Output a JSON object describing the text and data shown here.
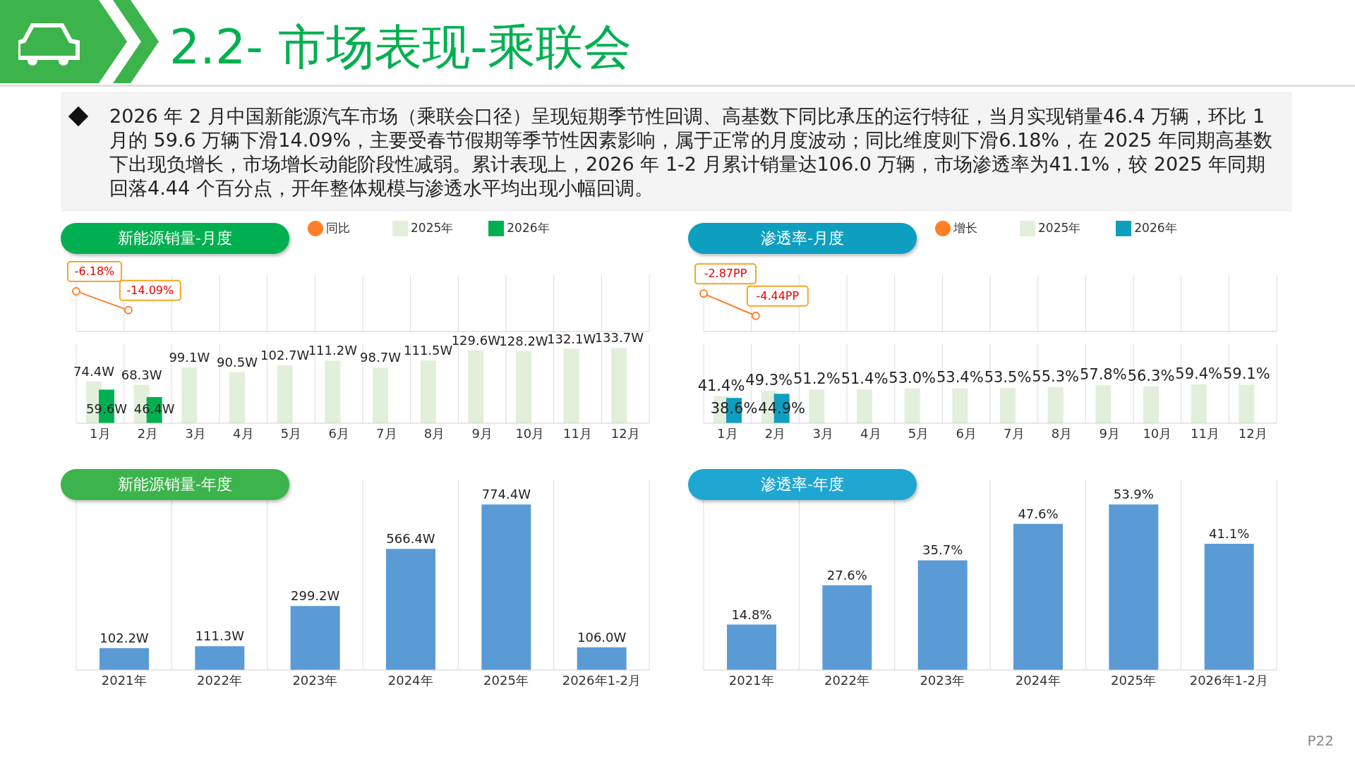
{
  "chart_data": [
    {
      "type": "other",
      "title": "2.2- 市场表现-乘联会",
      "annotations": [
        "2026 年 2 月中国新能源汽车市场（乘联会口径）呈现短期季节性回调、高基数下同比承压的运行特征，当月实现销量46.4 万辆，环比 1 月的 59.6 万辆下滑14.09%，主要受春节假期等季节性因素影响，属于正常的月度波动；同比维度则下滑6.18%，在 2025 年同期高基数下出现负增长，市场增长动能阶段性减弱。累计表现上，2026 年 1-2 月累计销量达106.0 万辆，市场渗透率为41.1%，较 2025 年同期回落4.44 个百分点，开年整体规模与渗透水平均出现小幅回调。",
        "P22"
      ]
    },
    {
      "type": "line",
      "title": "新能源销量-月度",
      "categories": [
        null,
        null,
        null,
        null,
        null,
        null,
        null,
        null,
        null,
        null,
        null,
        null
      ],
      "legend": "top",
      "grid": "x",
      "marker": "circle",
      "series": [
        {
          "name": "同比",
          "color": "#ff7f27",
          "values": [
            -6.18,
            -14.09,
            null,
            null,
            null,
            null,
            null,
            null,
            null,
            null,
            null,
            null
          ],
          "value_labels": [
            "-6.18%",
            "-14.09%",
            null,
            null,
            null,
            null,
            null,
            null,
            null,
            null,
            null,
            null
          ]
        }
      ]
    },
    {
      "type": "bar",
      "categories": [
        "1月",
        "2月",
        "3月",
        "4月",
        "5月",
        "6月",
        "7月",
        "8月",
        "9月",
        "10月",
        "11月",
        "12月"
      ],
      "legend": "top",
      "grid": "x",
      "series": [
        {
          "name": "2025年",
          "color": "#e2efda",
          "values": [
            74.4,
            68.3,
            99.1,
            90.5,
            102.7,
            111.2,
            98.7,
            111.5,
            129.6,
            128.2,
            132.1,
            133.7
          ],
          "value_labels": [
            "74.4W",
            "68.3W",
            "99.1W",
            "90.5W",
            "102.7W",
            "111.2W",
            "98.7W",
            "111.5W",
            "129.6W",
            "128.2W",
            "132.1W",
            "133.7W"
          ]
        },
        {
          "name": "2026年",
          "color": "#00b050",
          "values": [
            59.6,
            46.4,
            null,
            null,
            null,
            null,
            null,
            null,
            null,
            null,
            null,
            null
          ],
          "value_labels": [
            "59.6W",
            "46.4W",
            null,
            null,
            null,
            null,
            null,
            null,
            null,
            null,
            null,
            null
          ]
        }
      ]
    },
    {
      "type": "line",
      "title": "渗透率-月度",
      "categories": [
        null,
        null,
        null,
        null,
        null,
        null,
        null,
        null,
        null,
        null,
        null,
        null
      ],
      "legend": "top",
      "grid": "x",
      "marker": "circle",
      "series": [
        {
          "name": "增长",
          "color": "#ff7f27",
          "values": [
            -2.87,
            -4.44,
            null,
            null,
            null,
            null,
            null,
            null,
            null,
            null,
            null,
            null
          ],
          "value_labels": [
            "-2.87PP",
            "-4.44PP",
            null,
            null,
            null,
            null,
            null,
            null,
            null,
            null,
            null,
            null
          ]
        }
      ]
    },
    {
      "type": "bar",
      "categories": [
        "1月",
        "2月",
        "3月",
        "4月",
        "5月",
        "6月",
        "7月",
        "8月",
        "9月",
        "10月",
        "11月",
        "12月"
      ],
      "legend": "top",
      "grid": "x",
      "series": [
        {
          "name": "2025年",
          "color": "#e2efda",
          "values": [
            41.4,
            49.3,
            51.2,
            51.4,
            53.0,
            53.4,
            53.5,
            55.3,
            57.8,
            56.3,
            59.4,
            59.1
          ],
          "value_labels": [
            "41.4%",
            "49.3%",
            "51.2%",
            "51.4%",
            "53.0%",
            "53.4%",
            "53.5%",
            "55.3%",
            "57.8%",
            "56.3%",
            "59.4%",
            "59.1%"
          ]
        },
        {
          "name": "2026年",
          "color": "#0e9fc0",
          "values": [
            38.6,
            44.9,
            null,
            null,
            null,
            null,
            null,
            null,
            null,
            null,
            null,
            null
          ],
          "value_labels": [
            "38.6%",
            "44.9%",
            null,
            null,
            null,
            null,
            null,
            null,
            null,
            null,
            null,
            null
          ]
        }
      ]
    },
    {
      "type": "bar",
      "title": "新能源销量-年度",
      "categories": [
        "2021年",
        "2022年",
        "2023年",
        "2024年",
        "2025年",
        "2026年1-2月"
      ],
      "grid": "x",
      "color": "#5b9bd5",
      "values": [
        102.2,
        111.3,
        299.2,
        566.4,
        774.4,
        106.0
      ],
      "value_labels": [
        "102.2W",
        "111.3W",
        "299.2W",
        "566.4W",
        "774.4W",
        "106.0W"
      ]
    },
    {
      "type": "bar",
      "title": "渗透率-年度",
      "categories": [
        "2021年",
        "2022年",
        "2023年",
        "2024年",
        "2025年",
        "2026年1-2月"
      ],
      "grid": "x",
      "color": "#5b9bd5",
      "values": [
        14.8,
        27.6,
        35.7,
        47.6,
        53.9,
        41.1
      ],
      "value_labels": [
        "14.8%",
        "27.6%",
        "35.7%",
        "47.6%",
        "53.9%",
        "41.1%"
      ]
    }
  ]
}
